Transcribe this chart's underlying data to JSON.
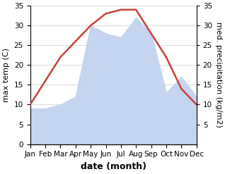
{
  "months": [
    "Jan",
    "Feb",
    "Mar",
    "Apr",
    "May",
    "Jun",
    "Jul",
    "Aug",
    "Sep",
    "Oct",
    "Nov",
    "Dec"
  ],
  "max_temp": [
    10,
    16,
    22,
    26,
    30,
    33,
    34,
    34,
    28,
    22,
    14,
    10
  ],
  "precipitation": [
    9,
    9,
    10,
    12,
    30,
    28,
    27,
    32,
    28,
    13,
    17,
    12
  ],
  "temp_color": "#c8413a",
  "precip_color": "#c5d4ef",
  "ylabel_left": "max temp (C)",
  "ylabel_right": "med. precipitation (kg/m2)",
  "xlabel": "date (month)",
  "ylim": [
    0,
    35
  ],
  "yticks": [
    0,
    5,
    10,
    15,
    20,
    25,
    30,
    35
  ],
  "label_fontsize": 8,
  "tick_fontsize": 7.5,
  "xlabel_fontsize": 9,
  "background_color": "#ffffff",
  "grid_color": "#cccccc"
}
